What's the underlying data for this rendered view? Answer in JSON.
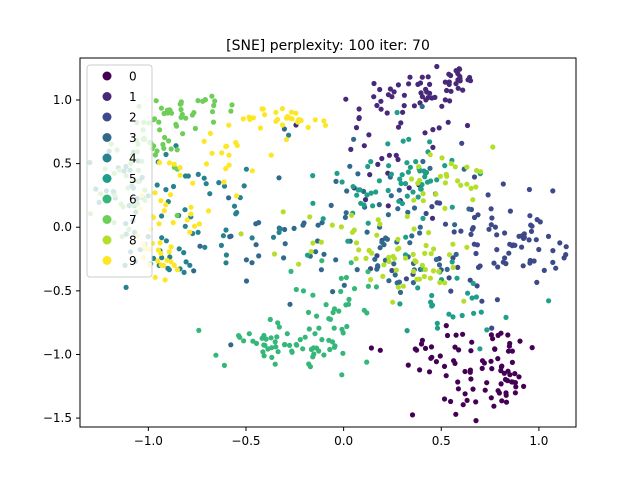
{
  "chart_data": {
    "type": "scatter",
    "title": "[SNE] perplexity: 100 iter: 70",
    "xlabel": "",
    "ylabel": "",
    "xlim": [
      -1.35,
      1.19
    ],
    "ylim": [
      -1.57,
      1.33
    ],
    "xticks": [
      -1.0,
      -0.5,
      0.0,
      0.5,
      1.0
    ],
    "xtick_labels": [
      "−1.0",
      "−0.5",
      "0.0",
      "0.5",
      "1.0"
    ],
    "yticks": [
      -1.5,
      -1.0,
      -0.5,
      0.0,
      0.5,
      1.0
    ],
    "ytick_labels": [
      "−1.5",
      "−1.0",
      "−0.5",
      "0.0",
      "0.5",
      "1.0"
    ],
    "grid": false,
    "legend": "upper-left",
    "point_count_per_class": 90,
    "series": [
      {
        "name": "0",
        "color": "#440154",
        "clusters": [
          [
            0.72,
            -1.25,
            0.12,
            0.16
          ],
          [
            0.52,
            -1.0,
            0.18,
            0.12
          ],
          [
            0.85,
            -1.05,
            0.05,
            0.15
          ]
        ]
      },
      {
        "name": "1",
        "color": "#482878",
        "clusters": [
          [
            0.2,
            1.0,
            0.15,
            0.09
          ],
          [
            0.45,
            1.08,
            0.12,
            0.06
          ],
          [
            0.58,
            1.16,
            0.05,
            0.05
          ],
          [
            0.2,
            0.55,
            0.18,
            0.25
          ]
        ]
      },
      {
        "name": "2",
        "color": "#3e4989",
        "clusters": [
          [
            0.95,
            -0.15,
            0.1,
            0.1
          ],
          [
            0.8,
            0.1,
            0.15,
            0.2
          ],
          [
            0.55,
            -0.3,
            0.2,
            0.2
          ]
        ]
      },
      {
        "name": "3",
        "color": "#31688e",
        "clusters": [
          [
            0.35,
            -0.25,
            0.2,
            0.18
          ],
          [
            0.1,
            0.25,
            0.22,
            0.25
          ],
          [
            -0.3,
            -0.2,
            0.2,
            0.2
          ]
        ]
      },
      {
        "name": "4",
        "color": "#26828e",
        "clusters": [
          [
            -0.9,
            -0.2,
            0.15,
            0.15
          ],
          [
            -0.7,
            0.2,
            0.2,
            0.25
          ],
          [
            -1.05,
            0.3,
            0.12,
            0.2
          ]
        ]
      },
      {
        "name": "5",
        "color": "#1f9e89",
        "clusters": [
          [
            0.35,
            0.45,
            0.12,
            0.15
          ],
          [
            0.6,
            -0.55,
            0.15,
            0.2
          ],
          [
            0.1,
            0.2,
            0.2,
            0.2
          ]
        ]
      },
      {
        "name": "6",
        "color": "#35b779",
        "clusters": [
          [
            -0.2,
            -0.95,
            0.14,
            0.07
          ],
          [
            -0.45,
            -0.9,
            0.1,
            0.08
          ],
          [
            -0.05,
            -0.6,
            0.12,
            0.18
          ]
        ]
      },
      {
        "name": "7",
        "color": "#6ece58",
        "clusters": [
          [
            -0.78,
            0.92,
            0.12,
            0.06
          ],
          [
            -0.98,
            0.7,
            0.1,
            0.12
          ],
          [
            -1.1,
            0.3,
            0.08,
            0.2
          ]
        ]
      },
      {
        "name": "8",
        "color": "#b5de2b",
        "clusters": [
          [
            0.58,
            0.4,
            0.12,
            0.12
          ],
          [
            0.1,
            -0.1,
            0.2,
            0.2
          ],
          [
            0.4,
            -0.3,
            0.15,
            0.15
          ]
        ]
      },
      {
        "name": "9",
        "color": "#fde725",
        "clusters": [
          [
            -0.88,
            0.25,
            0.1,
            0.2
          ],
          [
            -0.6,
            0.6,
            0.12,
            0.15
          ],
          [
            -0.3,
            0.85,
            0.1,
            0.06
          ],
          [
            -0.95,
            -0.2,
            0.08,
            0.12
          ]
        ]
      }
    ]
  }
}
